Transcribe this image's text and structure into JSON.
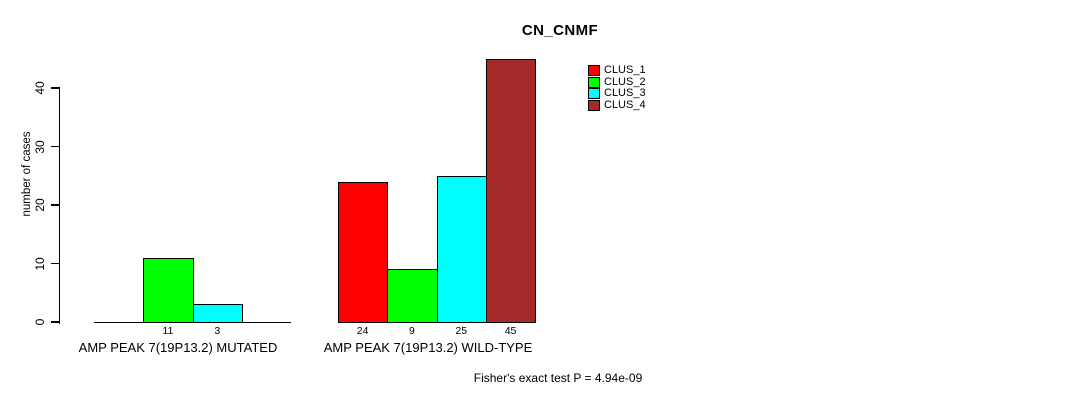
{
  "title": "CN_CNMF",
  "y_axis": {
    "label": "number of cases",
    "tick_labels": [
      "0",
      "10",
      "20",
      "30",
      "40"
    ]
  },
  "legend": {
    "items": [
      {
        "label": "CLUS_1",
        "color": "#FF0000"
      },
      {
        "label": "CLUS_2",
        "color": "#00FF00"
      },
      {
        "label": "CLUS_3",
        "color": "#00FFFF"
      },
      {
        "label": "CLUS_4",
        "color": "#A52A2A"
      }
    ]
  },
  "footer": "Fisher's exact test P = 4.94e-09",
  "chart_data": {
    "type": "bar",
    "title": "CN_CNMF",
    "xlabel": "",
    "ylabel": "number of cases",
    "ylim": [
      0,
      45
    ],
    "yticks": [
      0,
      10,
      20,
      30,
      40
    ],
    "grid": false,
    "legend_position": "inside-top-center",
    "categories": [
      "AMP PEAK 7(19P13.2) MUTATED",
      "AMP PEAK 7(19P13.2) WILD-TYPE"
    ],
    "series": [
      {
        "name": "CLUS_1",
        "color": "#FF0000",
        "values": [
          null,
          24
        ]
      },
      {
        "name": "CLUS_2",
        "color": "#00FF00",
        "values": [
          11,
          9
        ]
      },
      {
        "name": "CLUS_3",
        "color": "#00FFFF",
        "values": [
          3,
          25
        ]
      },
      {
        "name": "CLUS_4",
        "color": "#A52A2A",
        "values": [
          null,
          45
        ]
      }
    ],
    "bar_value_labels": {
      "AMP PEAK 7(19P13.2) MUTATED": [
        11,
        3
      ],
      "AMP PEAK 7(19P13.2) WILD-TYPE": [
        24,
        9,
        25,
        45
      ]
    },
    "annotation": "Fisher's exact test P = 4.94e-09"
  }
}
